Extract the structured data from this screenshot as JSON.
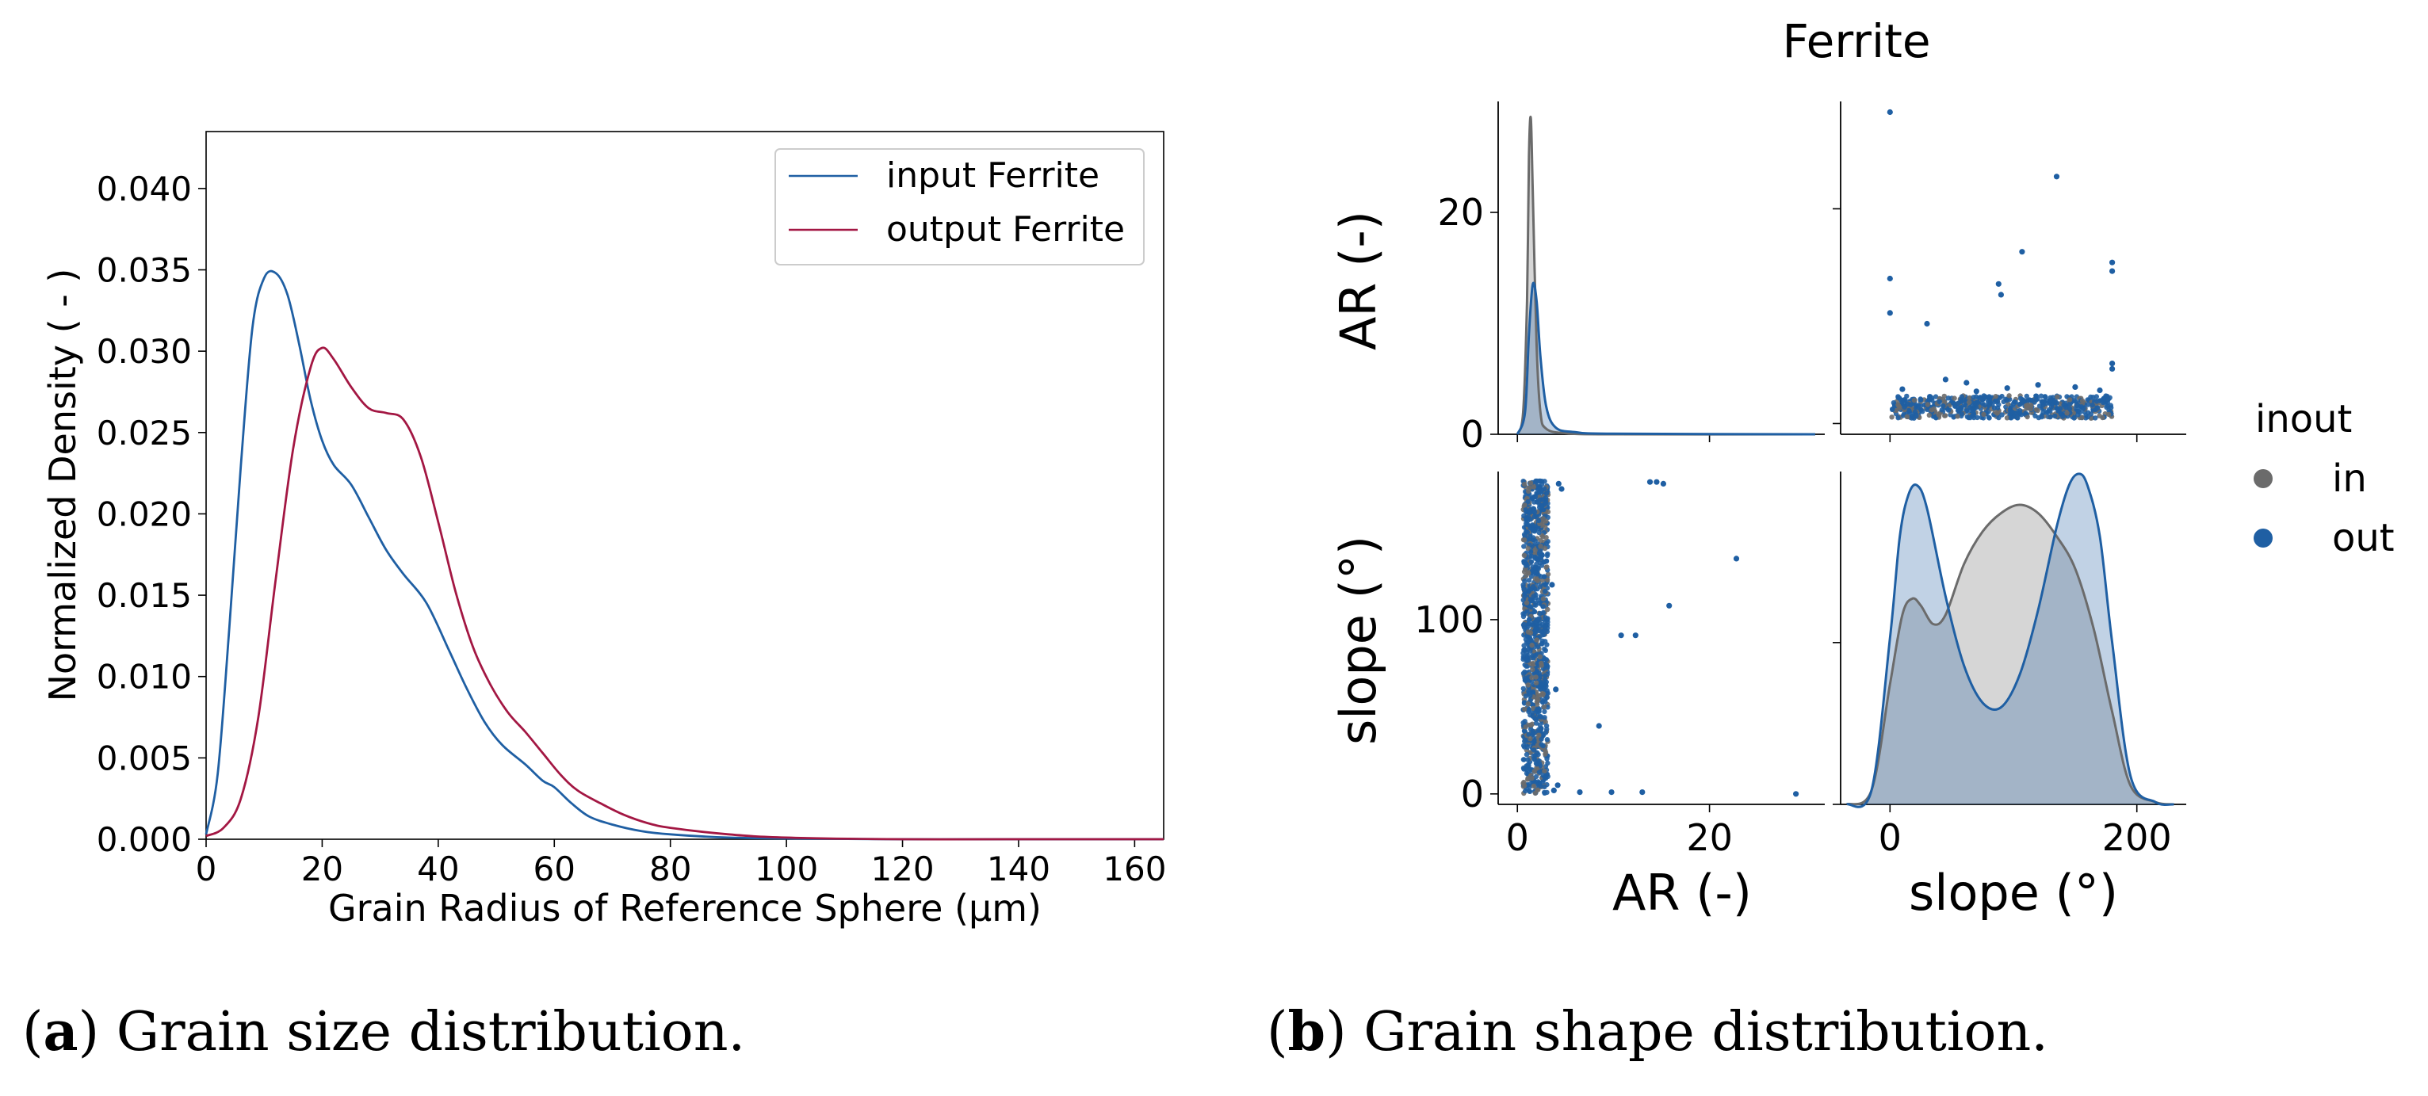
{
  "figure": {
    "caption_a": {
      "label": "a",
      "text": "Grain size distribution."
    },
    "caption_b": {
      "label": "b",
      "text": "Grain shape distribution."
    }
  },
  "colors": {
    "input": "#1f5fa3",
    "output": "#a31743",
    "in": "#6b6b6b",
    "out": "#1f5fa3"
  },
  "chart_data": [
    {
      "type": "line",
      "id": "a",
      "title": "",
      "xlabel": "Grain Radius of Reference Sphere (μm)",
      "ylabel": "Normalized Density ( - )",
      "xlim": [
        0,
        165
      ],
      "ylim": [
        0,
        0.0435
      ],
      "xticks": [
        0,
        20,
        40,
        60,
        80,
        100,
        120,
        140,
        160
      ],
      "xtick_labels": [
        "0",
        "20",
        "40",
        "60",
        "80",
        "100",
        "120",
        "140",
        "160"
      ],
      "yticks": [
        0,
        0.005,
        0.01,
        0.015,
        0.02,
        0.025,
        0.03,
        0.035,
        0.04
      ],
      "ytick_labels": [
        "0.000",
        "0.005",
        "0.010",
        "0.015",
        "0.020",
        "0.025",
        "0.030",
        "0.035",
        "0.040"
      ],
      "legend": "top-right",
      "grid": false,
      "series": [
        {
          "name": "input Ferrite",
          "color": "#1f5fa3",
          "x": [
            0,
            2,
            4,
            6,
            8,
            10,
            12,
            14,
            16,
            18,
            20,
            22,
            25,
            28,
            31,
            34,
            38,
            42,
            45,
            48,
            51,
            55,
            58,
            60,
            63,
            66,
            70,
            75,
            80,
            90,
            100,
            120,
            140,
            165
          ],
          "y": [
            0.0003,
            0.004,
            0.013,
            0.023,
            0.0315,
            0.0345,
            0.0348,
            0.0335,
            0.0305,
            0.027,
            0.0245,
            0.023,
            0.0218,
            0.0198,
            0.0178,
            0.0163,
            0.0145,
            0.0115,
            0.0092,
            0.0072,
            0.0058,
            0.0046,
            0.0036,
            0.0032,
            0.0022,
            0.0014,
            0.0009,
            0.0005,
            0.0003,
            0.0001,
            5e-05,
            0.0,
            0.0,
            0.0
          ]
        },
        {
          "name": "output Ferrite",
          "color": "#a31743",
          "x": [
            0,
            3,
            6,
            9,
            12,
            15,
            18,
            20,
            22,
            25,
            28,
            31,
            34,
            37,
            40,
            43,
            46,
            49,
            52,
            55,
            58,
            61,
            64,
            68,
            72,
            76,
            80,
            90,
            100,
            120,
            140,
            165
          ],
          "y": [
            0.0002,
            0.0007,
            0.0025,
            0.0075,
            0.016,
            0.024,
            0.029,
            0.0302,
            0.0295,
            0.0278,
            0.0265,
            0.0262,
            0.0258,
            0.0235,
            0.0195,
            0.0152,
            0.0118,
            0.0095,
            0.0078,
            0.0066,
            0.0053,
            0.004,
            0.003,
            0.0022,
            0.0015,
            0.001,
            0.0007,
            0.0003,
            0.0001,
            0.0,
            0.0,
            0.0
          ]
        }
      ]
    },
    {
      "type": "scatter",
      "id": "b",
      "title": "Ferrite",
      "kind": "pairplot",
      "variables": [
        "AR (-)",
        "slope (°)"
      ],
      "legend": {
        "title": "inout",
        "entries": [
          "in",
          "out"
        ],
        "placement": "right"
      },
      "panels": [
        {
          "id": "AR-AR",
          "type": "area",
          "xlim": [
            -2,
            32
          ],
          "ylim": [
            0,
            30
          ],
          "ylabel": "AR (-)",
          "yticks": [
            0,
            20
          ],
          "ytick_labels": [
            "0",
            "20"
          ],
          "series": [
            {
              "name": "in",
              "color": "#6b6b6b",
              "x": [
                0,
                0.6,
                1.0,
                1.2,
                1.4,
                1.6,
                2.0,
                2.4,
                3.0,
                5,
                10,
                31
              ],
              "y": [
                0,
                2,
                12,
                25,
                28.5,
                22,
                8,
                2,
                0.5,
                0.1,
                0,
                0
              ]
            },
            {
              "name": "out",
              "color": "#1f5fa3",
              "x": [
                0,
                0.8,
                1.2,
                1.6,
                2.0,
                2.4,
                3.0,
                4,
                6,
                10,
                31
              ],
              "y": [
                0,
                2,
                9,
                13.5,
                12,
                7,
                2.5,
                0.6,
                0.2,
                0.05,
                0.0
              ]
            }
          ]
        },
        {
          "id": "slope-AR",
          "type": "scatter",
          "xlim": [
            -40,
            240
          ],
          "ylim": [
            -1,
            30
          ],
          "yticks": [
            0,
            20
          ],
          "ytick_labels": [
            "0",
            "20"
          ],
          "band": {
            "x": [
              0,
              180
            ],
            "y": [
              0.5,
              2.6
            ],
            "count": 650
          },
          "points": [
            [
              0,
              29
            ],
            [
              135,
              23
            ],
            [
              107,
              16
            ],
            [
              180,
              15
            ],
            [
              180,
              14.2
            ],
            [
              0,
              13.5
            ],
            [
              88,
              13
            ],
            [
              90,
              12
            ],
            [
              0,
              10.3
            ],
            [
              30,
              9.3
            ],
            [
              180,
              5.6
            ],
            [
              180,
              5.1
            ],
            [
              45,
              4.1
            ],
            [
              62,
              3.8
            ],
            [
              120,
              3.6
            ],
            [
              150,
              3.4
            ],
            [
              10,
              3.2
            ],
            [
              170,
              3.1
            ],
            [
              95,
              3.3
            ],
            [
              70,
              3.0
            ]
          ]
        },
        {
          "id": "AR-slope",
          "type": "scatter",
          "xlim": [
            -2,
            32
          ],
          "ylim": [
            -6,
            185
          ],
          "ylabel": "slope (°)",
          "xlabel": "AR (-)",
          "yticks": [
            0,
            100
          ],
          "ytick_labels": [
            "0",
            "100"
          ],
          "xticks": [
            0,
            20
          ],
          "xtick_labels": [
            "0",
            "20"
          ],
          "band": {
            "x": [
              0.6,
              3.2
            ],
            "y": [
              0,
              180
            ],
            "count": 1100
          },
          "points": [
            [
              13.8,
              179
            ],
            [
              14.5,
              179
            ],
            [
              15.2,
              178
            ],
            [
              22.8,
              135
            ],
            [
              15.8,
              108
            ],
            [
              10.8,
              91
            ],
            [
              12.3,
              91
            ],
            [
              8.5,
              39
            ],
            [
              6.5,
              1
            ],
            [
              9.8,
              1
            ],
            [
              13.0,
              1
            ],
            [
              29,
              0
            ],
            [
              4.3,
              178
            ],
            [
              4.6,
              175
            ],
            [
              3.6,
              120
            ],
            [
              4.0,
              60
            ],
            [
              3.8,
              2
            ],
            [
              4.2,
              5
            ]
          ]
        },
        {
          "id": "slope-slope",
          "type": "area",
          "xlim": [
            -40,
            240
          ],
          "ylim": [
            0,
            0.0072
          ],
          "xlabel": "slope (°)",
          "xticks": [
            0,
            200
          ],
          "xtick_labels": [
            "0",
            "200"
          ],
          "series": [
            {
              "name": "in",
              "color": "#6b6b6b",
              "x": [
                -35,
                -15,
                0,
                10,
                18,
                25,
                35,
                45,
                60,
                75,
                90,
                105,
                120,
                135,
                150,
                165,
                180,
                195,
                215,
                230
              ],
              "y": [
                0,
                0.0003,
                0.0026,
                0.0041,
                0.00445,
                0.0043,
                0.0039,
                0.0041,
                0.0052,
                0.0059,
                0.0063,
                0.00648,
                0.0063,
                0.0058,
                0.0051,
                0.0038,
                0.002,
                0.0004,
                5e-05,
                0
              ]
            },
            {
              "name": "out",
              "color": "#1f5fa3",
              "x": [
                -35,
                -15,
                0,
                8,
                15,
                22,
                30,
                45,
                60,
                75,
                90,
                105,
                120,
                135,
                145,
                153,
                160,
                170,
                180,
                195,
                215,
                230
              ],
              "y": [
                0,
                0.0003,
                0.0036,
                0.0058,
                0.0067,
                0.0069,
                0.0064,
                0.0045,
                0.003,
                0.0022,
                0.0021,
                0.0028,
                0.0042,
                0.006,
                0.0069,
                0.00715,
                0.0069,
                0.0058,
                0.0035,
                0.0006,
                5e-05,
                0
              ]
            }
          ]
        }
      ]
    }
  ]
}
